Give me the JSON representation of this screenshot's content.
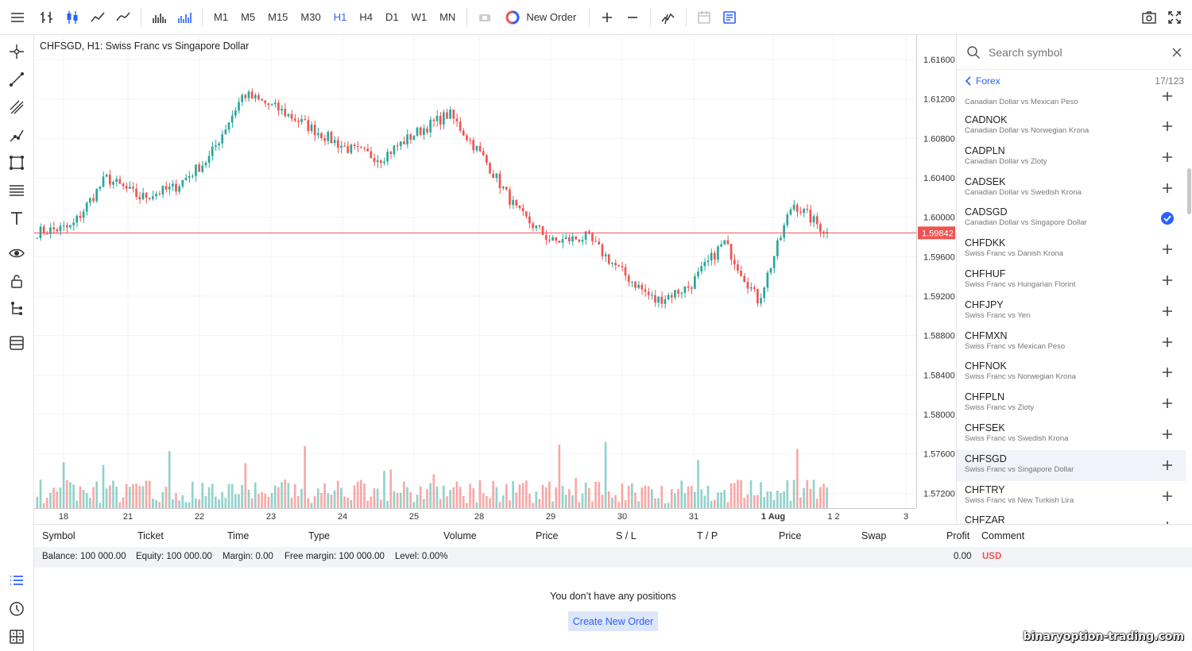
{
  "toolbar": {
    "timeframes": [
      "M1",
      "M5",
      "M15",
      "M30",
      "H1",
      "H4",
      "D1",
      "W1",
      "MN"
    ],
    "active_timeframe": "H1",
    "new_order_label": "New Order"
  },
  "chart": {
    "title": "CHFSGD, H1: Swiss Franc vs Singapore Dollar",
    "current_price": "1.59842",
    "price_labels": [
      "1.61600",
      "1.61200",
      "1.60800",
      "1.60400",
      "1.60000",
      "1.59600",
      "1.59200",
      "1.58800",
      "1.58400",
      "1.58000",
      "1.57600",
      "1.57200"
    ],
    "date_labels": [
      "18",
      "21",
      "22",
      "23",
      "24",
      "25",
      "28",
      "29",
      "30",
      "31",
      "1 Aug",
      "1 2",
      "3"
    ],
    "colors": {
      "up": "#26a69a",
      "down": "#ef5350",
      "price_line": "#ef5350"
    }
  },
  "chart_data": {
    "type": "candlestick",
    "symbol": "CHFSGD",
    "timeframe": "H1",
    "ylim": [
      1.5705,
      1.6185
    ],
    "anchors": [
      {
        "day": "18",
        "close": 1.5985
      },
      {
        "day": "18",
        "close": 1.599
      },
      {
        "day": "21",
        "close": 1.604
      },
      {
        "day": "21",
        "close": 1.602
      },
      {
        "day": "22",
        "close": 1.603
      },
      {
        "day": "22",
        "close": 1.606
      },
      {
        "day": "23",
        "close": 1.6125
      },
      {
        "day": "23",
        "close": 1.611
      },
      {
        "day": "24",
        "close": 1.609
      },
      {
        "day": "24",
        "close": 1.607
      },
      {
        "day": "25",
        "close": 1.606
      },
      {
        "day": "25",
        "close": 1.6085
      },
      {
        "day": "28",
        "close": 1.6105
      },
      {
        "day": "28",
        "close": 1.606
      },
      {
        "day": "29",
        "close": 1.6005
      },
      {
        "day": "29",
        "close": 1.5975
      },
      {
        "day": "30",
        "close": 1.598
      },
      {
        "day": "30",
        "close": 1.5945
      },
      {
        "day": "31",
        "close": 1.5915
      },
      {
        "day": "31",
        "close": 1.593
      },
      {
        "day": "1 Aug",
        "close": 1.5975
      },
      {
        "day": "1 Aug",
        "close": 1.5915
      },
      {
        "day": "2",
        "close": 1.6015
      },
      {
        "day": "2",
        "close": 1.5984
      }
    ]
  },
  "watchlist": {
    "search_placeholder": "Search symbol",
    "group": "Forex",
    "count": "17/123",
    "top_partial_desc": "Canadian Dollar vs Mexican Peso",
    "items": [
      {
        "name": "CADNOK",
        "desc": "Canadian Dollar vs Norwegian Krona"
      },
      {
        "name": "CADPLN",
        "desc": "Canadian Dollar vs Zloty"
      },
      {
        "name": "CADSEK",
        "desc": "Canadian Dollar vs Swedish Krona"
      },
      {
        "name": "CADSGD",
        "desc": "Canadian Dollar vs Singapore Dollar"
      },
      {
        "name": "CHFDKK",
        "desc": "Swiss Franc vs Danish Krona"
      },
      {
        "name": "CHFHUF",
        "desc": "Swiss Franc vs Hungarian Florint"
      },
      {
        "name": "CHFJPY",
        "desc": "Swiss Franc vs Yen"
      },
      {
        "name": "CHFMXN",
        "desc": "Swiss Franc vs Mexican Peso"
      },
      {
        "name": "CHFNOK",
        "desc": "Swiss Franc vs Norwegian Krona"
      },
      {
        "name": "CHFPLN",
        "desc": "Swiss Franc vs Zloty"
      },
      {
        "name": "CHFSEK",
        "desc": "Swiss Franc vs Swedish Krona"
      },
      {
        "name": "CHFSGD",
        "desc": "Swiss Franc vs Singapore Dollar"
      },
      {
        "name": "CHFTRY",
        "desc": "Swiss Franc vs New Turkish Lira"
      },
      {
        "name": "CHFZAR",
        "desc": ""
      }
    ],
    "checked_item": "CADSGD",
    "selected_item": "CHFSGD"
  },
  "positions": {
    "columns": [
      "Symbol",
      "Ticket",
      "Time",
      "Type",
      "Volume",
      "Price",
      "S / L",
      "T / P",
      "Price",
      "Swap",
      "Profit",
      "Comment"
    ],
    "balance": "Balance: 100 000.00",
    "equity": "Equity: 100 000.00",
    "margin": "Margin: 0.00",
    "free_margin": "Free margin: 100 000.00",
    "level": "Level: 0.00%",
    "profit_total": "0.00",
    "currency": "USD",
    "empty_message": "You don’t have any positions",
    "create_button": "Create New Order"
  },
  "watermark": "binaryoption-trading.com"
}
